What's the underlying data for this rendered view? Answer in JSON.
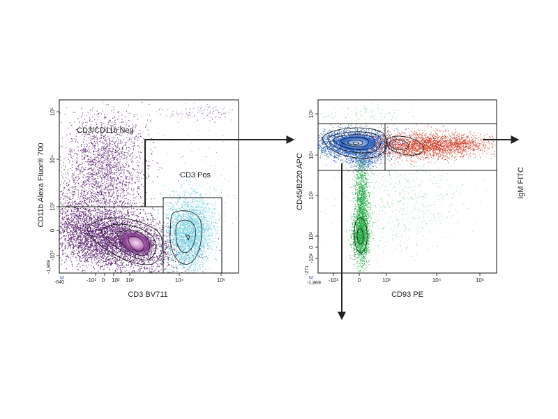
{
  "chart_data": [
    {
      "type": "scatter",
      "subtype": "flow-cytometry-density",
      "xlabel": "CD3 BV711",
      "ylabel": "CD11b Alexa Fluor® 700",
      "x_axis_scale": "biexponential",
      "y_axis_scale": "biexponential",
      "corner_marker": "M",
      "x_min_label": "-640",
      "y_min_label": "-1,969",
      "x_ticks": [
        "-10²",
        "0",
        "10²",
        "10³",
        "10⁴",
        "10⁵"
      ],
      "y_ticks": [
        "-10³",
        "0",
        "10³",
        "10⁴",
        "10⁵"
      ],
      "gates": [
        {
          "name": "CD3/CD11b Neg",
          "label": "CD3/CD11b Neg",
          "color": "#5a1e6e"
        },
        {
          "name": "CD3 Pos",
          "label": "CD3 Pos",
          "color": "#7dd4e4"
        }
      ],
      "populations": [
        {
          "gate": "CD3/CD11b Neg",
          "color": "#5a1e6e",
          "highlight": "#e8cde8"
        },
        {
          "gate": "CD3 Pos",
          "color": "#7dd4e4"
        }
      ]
    },
    {
      "type": "scatter",
      "subtype": "flow-cytometry-density",
      "xlabel": "CD93 PE",
      "ylabel": "CD45/B220 APC",
      "x_axis_scale": "biexponential",
      "y_axis_scale": "biexponential",
      "corner_marker": "M",
      "x_min_label": "-1,969",
      "y_min_label": "-271",
      "x_ticks": [
        "-10³",
        "0",
        "10³",
        "10⁴",
        "10⁵"
      ],
      "y_ticks": [
        "-10²",
        "0",
        "10²",
        "10³",
        "10⁴",
        "10⁵"
      ],
      "next_axis": "IgM FITC",
      "populations": [
        {
          "color": "#2a62c4",
          "highlight": "#e8f0ff"
        },
        {
          "color": "#d4371f"
        },
        {
          "color": "#1fad3f"
        }
      ]
    }
  ]
}
